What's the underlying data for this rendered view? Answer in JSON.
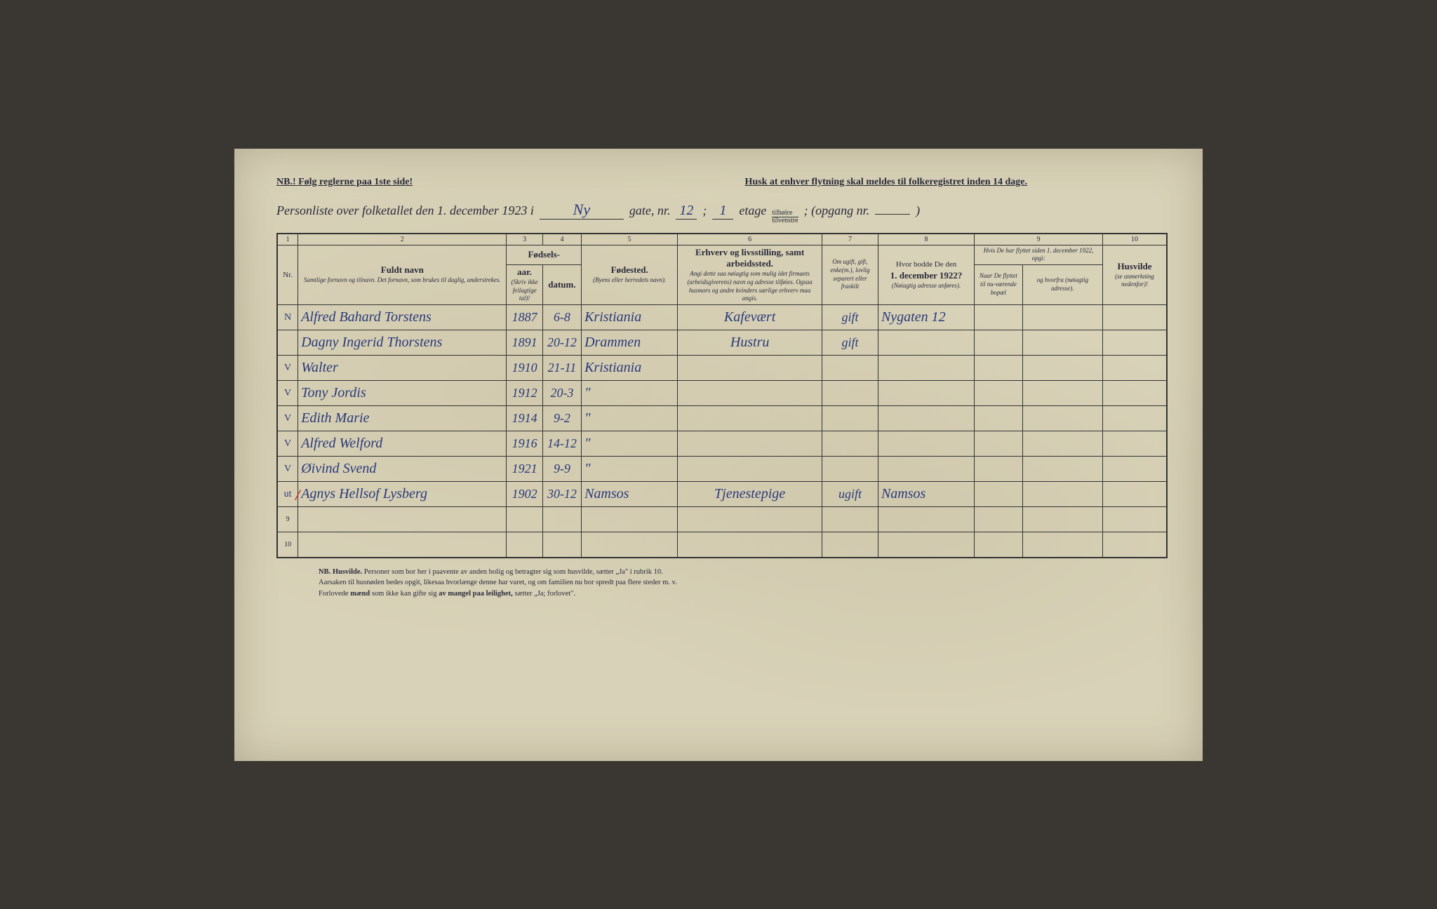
{
  "header": {
    "nb_line": "NB.! Følg reglerne paa 1ste side!",
    "husk_line": "Husk at enhver flytning skal meldes til folkeregistret inden 14 dage.",
    "title_prefix": "Personliste over folketallet den 1. december 1923 i",
    "gate_value": "Ny",
    "gate_label": "gate, nr.",
    "nr_value": "12",
    "semicolon": ";",
    "etage_value": "1",
    "etage_label": "etage",
    "tilhoire": "tilhøire",
    "tilvenstre": "tilvenstre",
    "opgang_label": "; (opgang nr.",
    "opgang_value": "",
    "close_paren": ")"
  },
  "columns": {
    "c1": "1",
    "c2": "2",
    "c3": "3",
    "c4": "4",
    "c5": "5",
    "c6": "6",
    "c7": "7",
    "c8": "8",
    "c9": "9",
    "c10": "10",
    "nr": "Nr.",
    "fuldt_navn": "Fuldt navn",
    "fuldt_navn_sub": "Samtlige fornavn og tilnavn. Det fornavn, som brukes til daglig, understrekes.",
    "fodsels": "Fødsels-",
    "aar": "aar.",
    "datum": "datum.",
    "skriv_ikke": "(Skriv ikke feilagtige tal)!",
    "fodested": "Fødested.",
    "fodested_sub": "(Byens eller herredets navn).",
    "erhverv": "Erhverv og livsstilling, samt arbeidssted.",
    "erhverv_sub": "Angi dette saa nøiagtig som mulig idet firmaets (arbeidsgiverens) navn og adresse tilføies. Ogsaa husmors og andre kvinders særlige erhverv maa angis.",
    "ugift": "Om ugift, gift, enke(m.), lovlig separert eller fraskilt",
    "hvor_bodde": "Hvor bodde De den",
    "hvor_date": "1. december 1922?",
    "hvor_sub": "(Nøiagtig adresse anføres).",
    "hvis_flyttet": "Hvis De har flyttet siden 1. december 1922, opgi:",
    "naar_de": "Naar De flyttet til nu-værende bopæl",
    "hvorfra": "og hvorfra (nøiagtig adresse).",
    "husvilde": "Husvilde",
    "husvilde_sub": "(se anmerkning nedenfor)!"
  },
  "rows": [
    {
      "nr": "N",
      "name": "Alfred Bahard Torstens",
      "aar": "1887",
      "datum": "6-8",
      "fodested": "Kristiania",
      "erhverv": "Kafevært",
      "status": "gift",
      "bodde": "Nygaten 12",
      "naar": "",
      "hvorfra": "",
      "husvilde": ""
    },
    {
      "nr": "",
      "name": "Dagny Ingerid Thorstens",
      "aar": "1891",
      "datum": "20-12",
      "fodested": "Drammen",
      "erhverv": "Hustru",
      "status": "gift",
      "bodde": "",
      "naar": "",
      "hvorfra": "",
      "husvilde": ""
    },
    {
      "nr": "V",
      "name": "Walter",
      "aar": "1910",
      "datum": "21-11",
      "fodested": "Kristiania",
      "erhverv": "",
      "status": "",
      "bodde": "",
      "naar": "",
      "hvorfra": "",
      "husvilde": ""
    },
    {
      "nr": "V",
      "name": "Tony Jordis",
      "aar": "1912",
      "datum": "20-3",
      "fodested": "\"",
      "erhverv": "",
      "status": "",
      "bodde": "",
      "naar": "",
      "hvorfra": "",
      "husvilde": ""
    },
    {
      "nr": "V",
      "name": "Edith Marie",
      "aar": "1914",
      "datum": "9-2",
      "fodested": "\"",
      "erhverv": "",
      "status": "",
      "bodde": "",
      "naar": "",
      "hvorfra": "",
      "husvilde": ""
    },
    {
      "nr": "V",
      "name": "Alfred Welford",
      "aar": "1916",
      "datum": "14-12",
      "fodested": "\"",
      "erhverv": "",
      "status": "",
      "bodde": "",
      "naar": "",
      "hvorfra": "",
      "husvilde": ""
    },
    {
      "nr": "V",
      "name": "Øivind Svend",
      "aar": "1921",
      "datum": "9-9",
      "fodested": "\"",
      "erhverv": "",
      "status": "",
      "bodde": "",
      "naar": "",
      "hvorfra": "",
      "husvilde": ""
    },
    {
      "nr": "ut",
      "name": "Agnys Hellsof Lysberg",
      "aar": "1902",
      "datum": "30-12",
      "fodested": "Namsos",
      "erhverv": "Tjenestepige",
      "status": "ugift",
      "bodde": "Namsos",
      "naar": "",
      "hvorfra": "",
      "husvilde": ""
    }
  ],
  "empty_rows": [
    "9",
    "10"
  ],
  "footnote": {
    "line1_b": "NB. Husvilde.",
    "line1": "Personer som bor her i paavente av anden bolig og betragter sig som husvilde, sætter „Ja\" i rubrik 10.",
    "line2": "Aarsaken til husnøden bedes opgit, likesaa hvorlænge denne har varet, og om familien nu bor spredt paa flere steder m. v.",
    "line3a": "Forlovede ",
    "line3b": "mænd",
    "line3c": " som ikke kan gifte sig ",
    "line3d": "av mangel paa leilighet,",
    "line3e": " sætter „Ja; forlovet\"."
  }
}
